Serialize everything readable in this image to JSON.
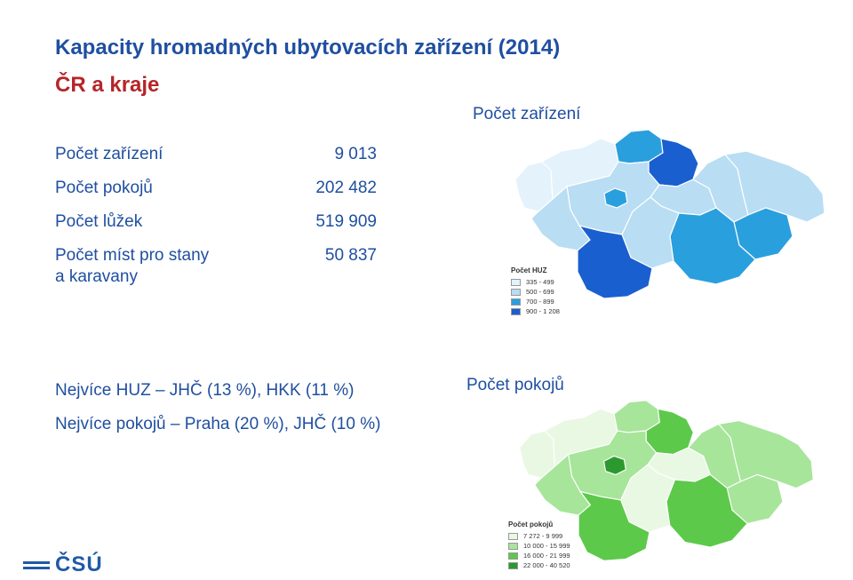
{
  "header": {
    "title": "Kapacity hromadných ubytovacích zařízení (2014)",
    "subtitle": "ČR a kraje"
  },
  "stats": [
    {
      "label": "Počet zařízení",
      "value": "9 013"
    },
    {
      "label": "Počet pokojů",
      "value": "202 482"
    },
    {
      "label": "Počet lůžek",
      "value": "519 909"
    },
    {
      "label": "Počet míst pro stany",
      "label2": "a karavany",
      "value": "50 837"
    }
  ],
  "notes": [
    "Nejvíce HUZ – JHČ (13 %), HKK (11 %)",
    "Nejvíce pokojů – Praha (20 %), JHČ (10 %)"
  ],
  "map_facilities": {
    "caption": "Počet zařízení",
    "legend_title": "Počet HUZ",
    "legend": [
      {
        "label": "335 - 499",
        "color": "#e3f2fb"
      },
      {
        "label": "500 - 699",
        "color": "#b9ddf3"
      },
      {
        "label": "700 - 899",
        "color": "#2a9fde"
      },
      {
        "label": "900 - 1 208",
        "color": "#1a5fd0"
      }
    ]
  },
  "map_rooms": {
    "caption": "Počet pokojů",
    "legend_title": "Počet pokojů",
    "legend": [
      {
        "label": "7 272 - 9 999",
        "color": "#e9f8e3"
      },
      {
        "label": "10 000 - 15 999",
        "color": "#a7e59a"
      },
      {
        "label": "16 000 - 21 999",
        "color": "#5cc94a"
      },
      {
        "label": "22 000 - 40 520",
        "color": "#2b9a2e"
      }
    ]
  },
  "logo": {
    "text": "ČSÚ"
  }
}
